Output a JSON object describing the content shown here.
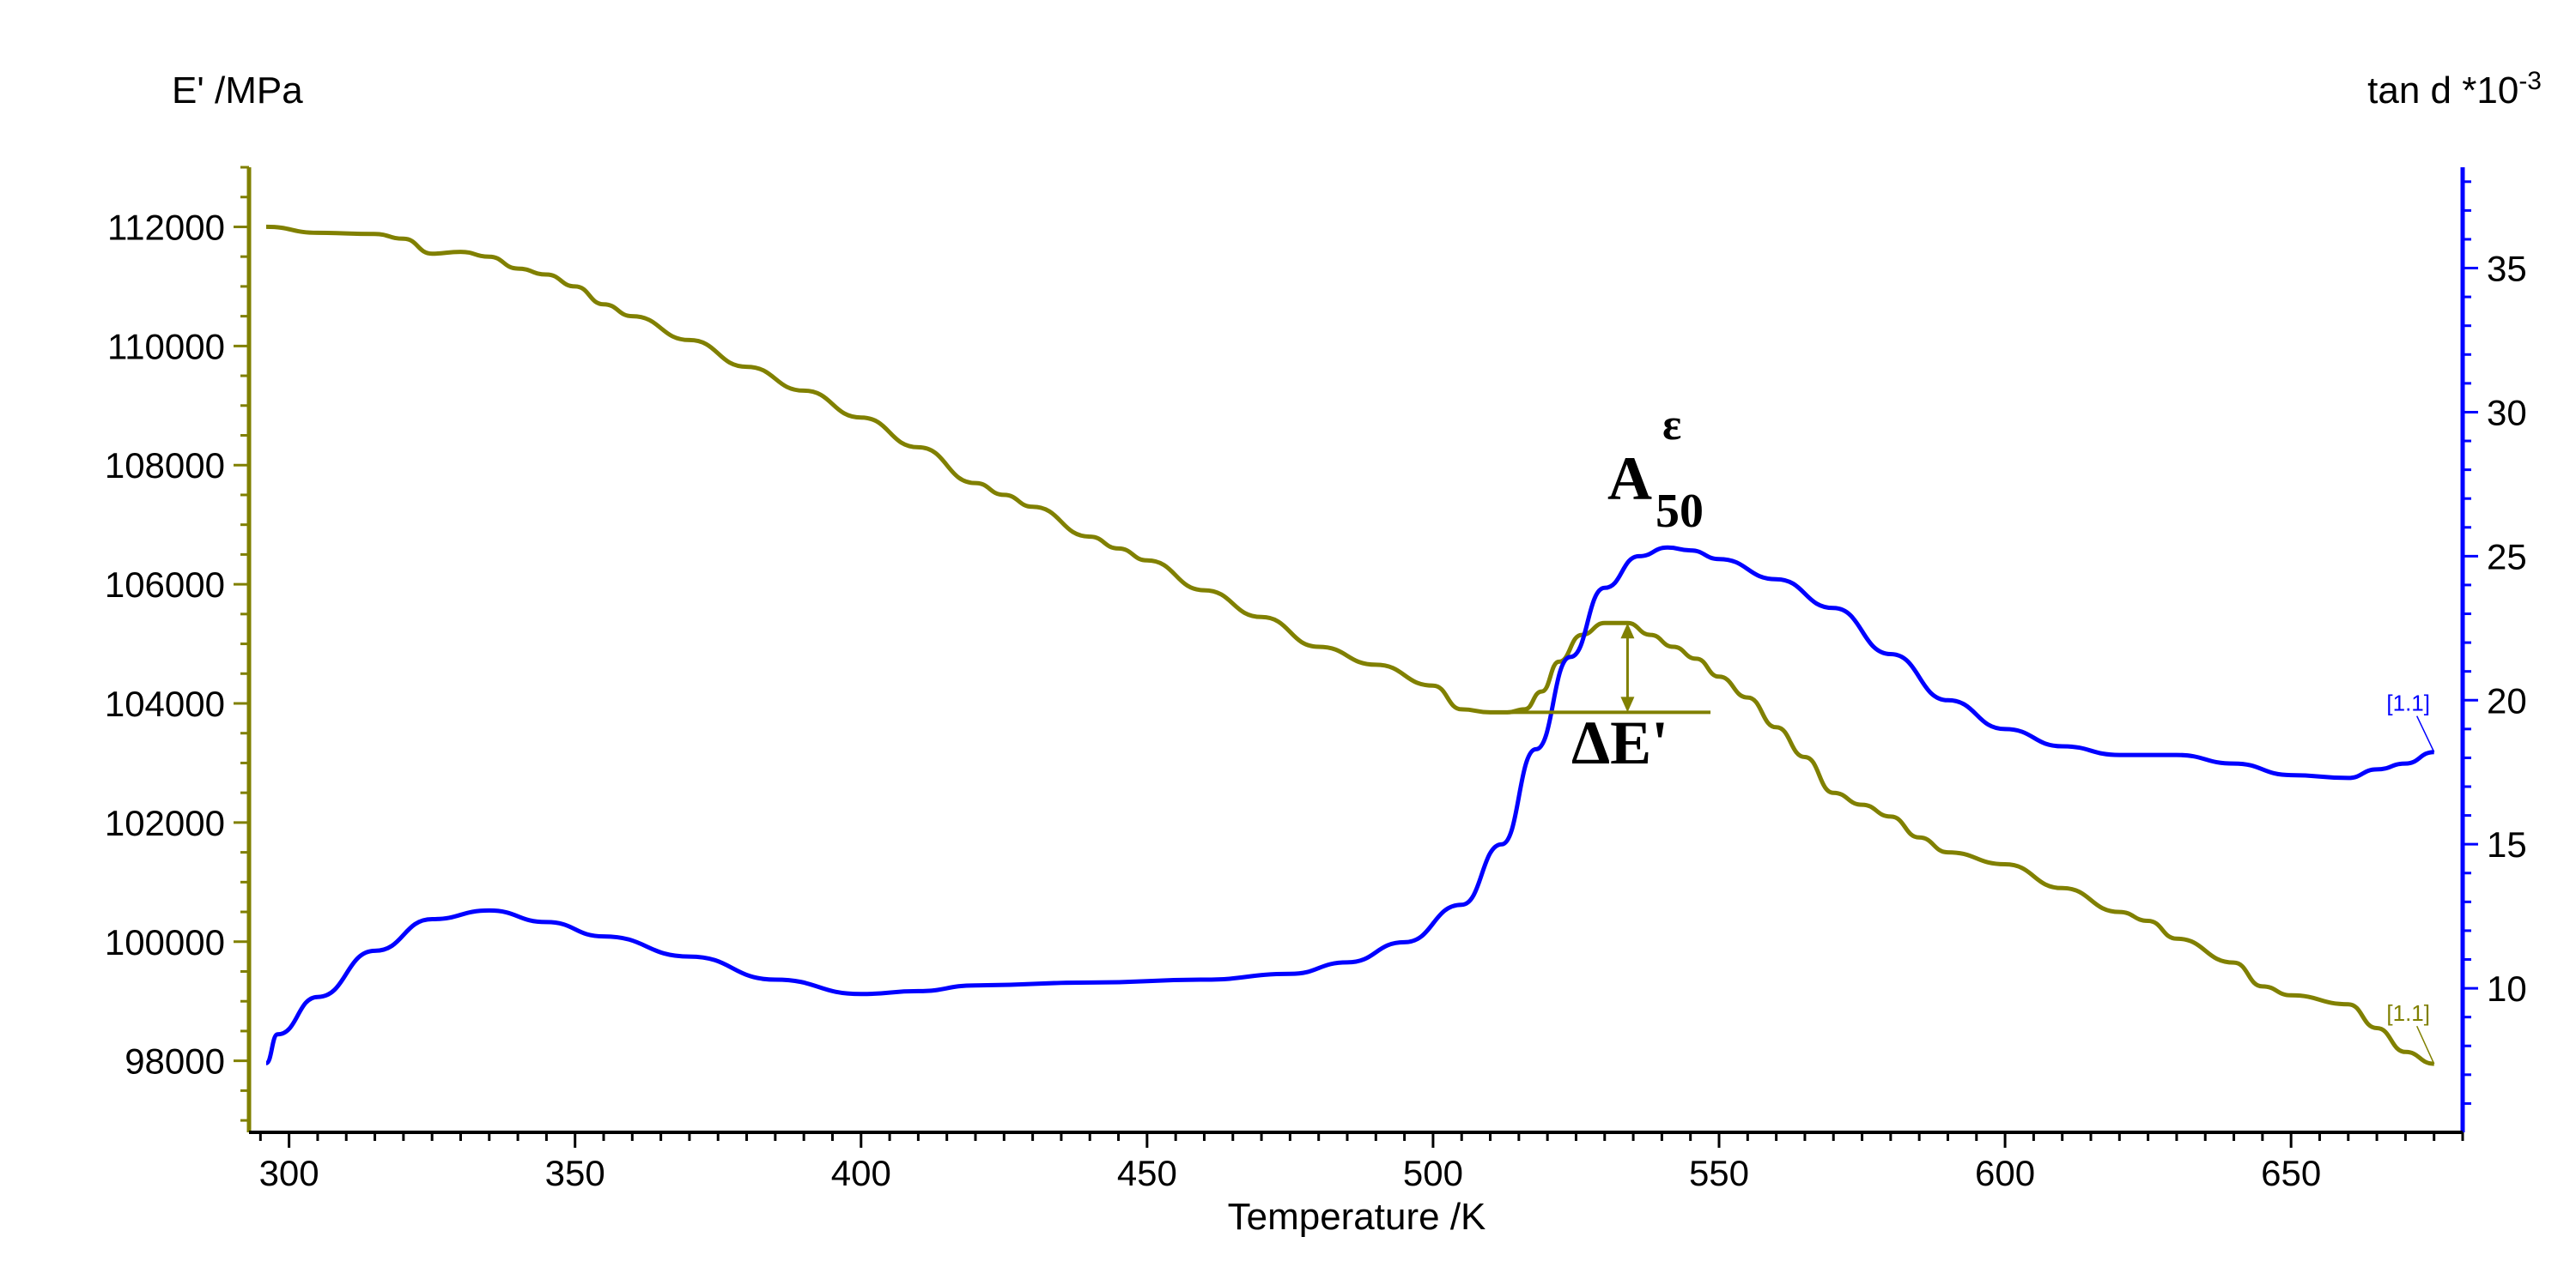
{
  "chart_data": {
    "type": "line",
    "xlabel": "Temperature /K",
    "ylabel_left": "E' /MPa",
    "ylabel_right_base": "tan d *10",
    "ylabel_right_exp": "-3",
    "xlim": [
      293,
      680
    ],
    "ylim_left": [
      96800,
      113000
    ],
    "ylim_right": [
      5,
      38.5
    ],
    "x_ticks": [
      "300",
      "350",
      "400",
      "450",
      "500",
      "550",
      "600",
      "650"
    ],
    "y_left_ticks": [
      "98000",
      "100000",
      "102000",
      "104000",
      "106000",
      "108000",
      "110000",
      "112000"
    ],
    "y_right_ticks": [
      "10",
      "15",
      "20",
      "25",
      "30",
      "35"
    ],
    "colors": {
      "E_prime": "#808000",
      "tan_d": "#0000ff",
      "axes": "#000000"
    },
    "series": [
      {
        "axis": "left",
        "color": "#808000",
        "label": "[1.1]",
        "x": [
          296,
          305,
          315,
          320,
          325,
          330,
          335,
          340,
          345,
          350,
          355,
          360,
          370,
          380,
          390,
          400,
          410,
          420,
          425,
          430,
          440,
          445,
          450,
          460,
          470,
          480,
          490,
          500,
          505,
          510,
          513,
          516,
          519,
          522,
          526,
          530,
          534,
          538,
          542,
          546,
          550,
          555,
          560,
          565,
          570,
          575,
          580,
          585,
          590,
          600,
          610,
          620,
          625,
          630,
          640,
          645,
          650,
          660,
          665,
          670,
          675
        ],
        "y": [
          112000,
          111900,
          111880,
          111800,
          111550,
          111580,
          111500,
          111300,
          111200,
          111000,
          110700,
          110500,
          110100,
          109650,
          109250,
          108800,
          108300,
          107700,
          107500,
          107300,
          106800,
          106600,
          106400,
          105900,
          105450,
          104950,
          104650,
          104300,
          103900,
          103850,
          103850,
          103900,
          104200,
          104700,
          105150,
          105350,
          105350,
          105150,
          104950,
          104750,
          104450,
          104100,
          103600,
          103100,
          102500,
          102300,
          102100,
          101750,
          101500,
          101300,
          100900,
          100500,
          100350,
          100050,
          99650,
          99250,
          99100,
          98950,
          98550,
          98150,
          97950
        ]
      },
      {
        "axis": "right",
        "color": "#0000ff",
        "label": "[1.1]",
        "x": [
          296,
          298,
          305,
          315,
          325,
          335,
          345,
          355,
          370,
          385,
          400,
          410,
          420,
          440,
          460,
          475,
          485,
          495,
          505,
          512,
          518,
          524,
          530,
          536,
          541,
          545,
          550,
          560,
          570,
          580,
          590,
          600,
          610,
          620,
          630,
          640,
          650,
          660,
          665,
          670,
          675
        ],
        "y": [
          7.4,
          8.4,
          9.7,
          11.3,
          12.4,
          12.7,
          12.3,
          11.8,
          11.1,
          10.3,
          9.8,
          9.9,
          10.1,
          10.2,
          10.3,
          10.5,
          10.9,
          11.6,
          12.9,
          15.0,
          18.3,
          21.5,
          23.9,
          25.0,
          25.3,
          25.2,
          24.9,
          24.2,
          23.2,
          21.6,
          20.0,
          19.0,
          18.4,
          18.1,
          18.1,
          17.8,
          17.4,
          17.3,
          17.6,
          17.8,
          18.2
        ]
      }
    ],
    "annotations": {
      "peak_label": "A",
      "peak_sub": "50",
      "peak_sup": "ε",
      "delta_label": "ΔE'",
      "baseline_y": 103850,
      "baseline_x": [
        512,
        544
      ],
      "arrow_x": 534,
      "arrow_top": 105350,
      "arrow_bottom": 103850
    }
  }
}
